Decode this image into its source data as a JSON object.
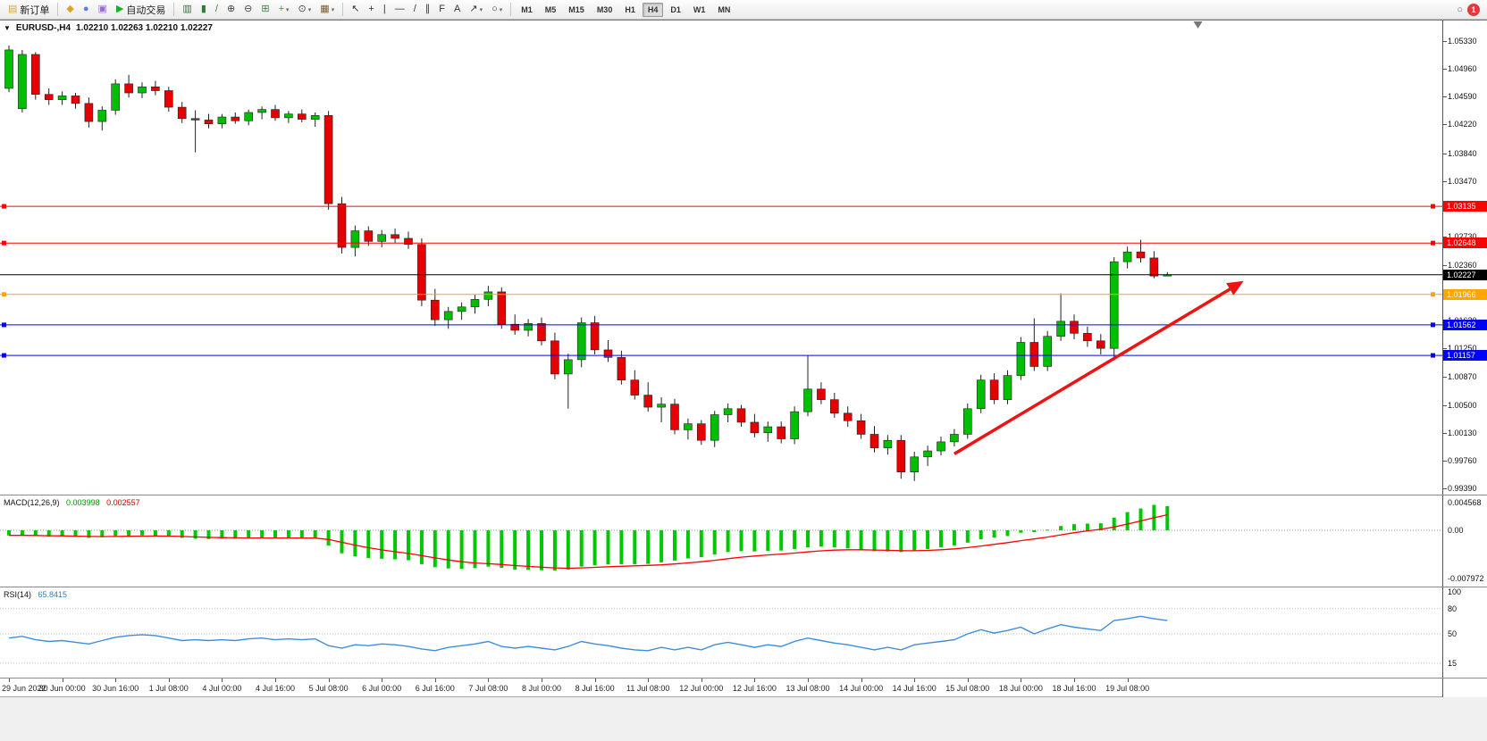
{
  "colors": {
    "bull": "#00BE00",
    "bear": "#E60000",
    "wick": "#222222",
    "arrow": "#ED1313",
    "macd_hist": "#00C800",
    "macd_signal": "#FF0000",
    "rsi_line": "#3E8EDE",
    "axis_text": "#000000"
  },
  "toolbar": {
    "dropdown_glyph": "▾",
    "groups": [
      {
        "items": [
          {
            "name": "new-order-button",
            "icon_name": "new-order-icon",
            "glyph": "▤",
            "glyph_color": "#d8a43c",
            "label": "新订单"
          }
        ]
      },
      {
        "items": [
          {
            "name": "market-button",
            "icon_name": "market-icon",
            "glyph": "◆",
            "glyph_color": "#e0a327"
          },
          {
            "name": "profile-button",
            "icon_name": "profile-icon",
            "glyph": "●",
            "glyph_color": "#5a7fd6"
          },
          {
            "name": "community-button",
            "icon_name": "community-icon",
            "glyph": "▣",
            "glyph_color": "#9a6bd0"
          },
          {
            "name": "autotrade-button",
            "icon_name": "autotrade-play-icon",
            "glyph": "▶",
            "glyph_color": "#1faf1f",
            "label": "自动交易"
          }
        ]
      },
      {
        "items": [
          {
            "name": "bar-chart-button",
            "icon_name": "bar-chart-icon",
            "glyph": "▥",
            "glyph_color": "#3a6b3a"
          },
          {
            "name": "candlestick-chart-button",
            "icon_name": "candlestick-chart-icon",
            "glyph": "▮",
            "glyph_color": "#2e7d32"
          },
          {
            "name": "line-chart-button",
            "icon_name": "line-chart-icon",
            "glyph": "/",
            "glyph_color": "#2e7d32"
          },
          {
            "name": "zoom-in-button",
            "icon_name": "zoom-in-icon",
            "glyph": "⊕",
            "glyph_color": "#444444"
          },
          {
            "name": "zoom-out-button",
            "icon_name": "zoom-out-icon",
            "glyph": "⊖",
            "glyph_color": "#444444"
          },
          {
            "name": "tile-windows-button",
            "icon_name": "tile-windows-icon",
            "glyph": "⊞",
            "glyph_color": "#3f7f3f"
          },
          {
            "name": "indicators-button",
            "icon_name": "indicators-plus-icon",
            "glyph": "+",
            "glyph_color": "#1faf1f",
            "dropdown": true
          },
          {
            "name": "periods-button",
            "icon_name": "clock-icon",
            "glyph": "⊙",
            "glyph_color": "#444444",
            "dropdown": true
          },
          {
            "name": "templates-button",
            "icon_name": "template-icon",
            "glyph": "▦",
            "glyph_color": "#7a5c2e",
            "dropdown": true
          }
        ]
      },
      {
        "items": [
          {
            "name": "cursor-button",
            "icon_name": "cursor-icon",
            "glyph": "↖",
            "glyph_color": "#333333"
          },
          {
            "name": "crosshair-button",
            "icon_name": "crosshair-icon",
            "glyph": "+",
            "glyph_color": "#333333"
          },
          {
            "name": "vertical-line-button",
            "icon_name": "vertical-line-icon",
            "glyph": "|",
            "glyph_color": "#333333"
          },
          {
            "name": "horizontal-line-button",
            "icon_name": "horizontal-line-icon",
            "glyph": "—",
            "glyph_color": "#333333"
          },
          {
            "name": "trendline-button",
            "icon_name": "trendline-icon",
            "glyph": "/",
            "glyph_color": "#333333"
          },
          {
            "name": "channel-button",
            "icon_name": "channel-icon",
            "glyph": "∥",
            "glyph_color": "#333333"
          },
          {
            "name": "fibonacci-button",
            "icon_name": "fibonacci-icon",
            "glyph": "F",
            "glyph_color": "#333333"
          },
          {
            "name": "text-button",
            "icon_name": "text-icon",
            "glyph": "A",
            "glyph_color": "#333333"
          },
          {
            "name": "arrows-button",
            "icon_name": "arrow-object-icon",
            "glyph": "↗",
            "glyph_color": "#333333",
            "dropdown": true
          },
          {
            "name": "shapes-button",
            "icon_name": "shapes-icon",
            "glyph": "○",
            "glyph_color": "#333333",
            "dropdown": true
          }
        ]
      }
    ],
    "timeframes": [
      "M1",
      "M5",
      "M15",
      "M30",
      "H1",
      "H4",
      "D1",
      "W1",
      "MN"
    ],
    "active_timeframe": "H4",
    "search_glyph": "○",
    "notification_count": "1"
  },
  "chart": {
    "collapse_glyph": "▼",
    "title": "EURUSD-,H4",
    "ohlc": "1.02210 1.02263 1.02210 1.02227",
    "shift_marker_index": 89.3
  },
  "chart_data": {
    "type": "candlestick",
    "symbol": "EURUSD",
    "period": "H4",
    "ylim": [
      0.9931,
      1.056
    ],
    "y_ticks": [
      "1.05330",
      "1.04960",
      "1.04590",
      "1.04220",
      "1.03840",
      "1.03470",
      "1.03100",
      "1.02730",
      "1.02360",
      "1.01990",
      "1.01620",
      "1.01250",
      "1.00870",
      "1.00500",
      "1.00130",
      "0.99760",
      "0.99390"
    ],
    "x_label_step": 4,
    "x_labels": [
      "29 Jun 2022",
      "30 Jun 00:00",
      "30 Jun 16:00",
      "1 Jul 08:00",
      "4 Jul 00:00",
      "4 Jul 16:00",
      "5 Jul 08:00",
      "6 Jul 00:00",
      "6 Jul 16:00",
      "7 Jul 08:00",
      "8 Jul 00:00",
      "8 Jul 16:00",
      "11 Jul 08:00",
      "12 Jul 00:00",
      "12 Jul 16:00",
      "13 Jul 08:00",
      "14 Jul 00:00",
      "14 Jul 16:00",
      "15 Jul 08:00",
      "18 Jul 00:00",
      "18 Jul 16:00",
      "19 Jul 08:00"
    ],
    "candles": [
      [
        1.047,
        1.0527,
        1.0465,
        1.0521
      ],
      [
        1.0443,
        1.0521,
        1.0438,
        1.0515
      ],
      [
        1.0515,
        1.0518,
        1.0455,
        1.0462
      ],
      [
        1.0462,
        1.047,
        1.0448,
        1.0455
      ],
      [
        1.0455,
        1.0466,
        1.0448,
        1.046
      ],
      [
        1.046,
        1.0464,
        1.0443,
        1.045
      ],
      [
        1.045,
        1.0458,
        1.0418,
        1.0426
      ],
      [
        1.0426,
        1.0446,
        1.0414,
        1.0441
      ],
      [
        1.0441,
        1.0482,
        1.0435,
        1.0476
      ],
      [
        1.0476,
        1.0488,
        1.0458,
        1.0464
      ],
      [
        1.0464,
        1.0478,
        1.0457,
        1.0472
      ],
      [
        1.0472,
        1.048,
        1.0461,
        1.0467
      ],
      [
        1.0467,
        1.0472,
        1.0439,
        1.0445
      ],
      [
        1.0445,
        1.0452,
        1.0424,
        1.043
      ],
      [
        1.043,
        1.0441,
        1.0385,
        1.0428
      ],
      [
        1.0428,
        1.0436,
        1.0417,
        1.0423
      ],
      [
        1.0423,
        1.0436,
        1.0417,
        1.0432
      ],
      [
        1.0432,
        1.0438,
        1.0423,
        1.0427
      ],
      [
        1.0427,
        1.0442,
        1.0421,
        1.0438
      ],
      [
        1.0438,
        1.0446,
        1.0429,
        1.0442
      ],
      [
        1.0442,
        1.0448,
        1.0427,
        1.0431
      ],
      [
        1.0431,
        1.044,
        1.0424,
        1.0436
      ],
      [
        1.0436,
        1.0442,
        1.0425,
        1.0429
      ],
      [
        1.0429,
        1.0438,
        1.0419,
        1.0434
      ],
      [
        1.0434,
        1.044,
        1.0309,
        1.0317
      ],
      [
        1.0317,
        1.0326,
        1.0251,
        1.0259
      ],
      [
        1.0259,
        1.0288,
        1.0247,
        1.0281
      ],
      [
        1.0281,
        1.0287,
        1.0261,
        1.0267
      ],
      [
        1.0267,
        1.0282,
        1.0259,
        1.0276
      ],
      [
        1.0276,
        1.0284,
        1.0265,
        1.0271
      ],
      [
        1.0271,
        1.028,
        1.0257,
        1.0263
      ],
      [
        1.0263,
        1.0271,
        1.0181,
        1.0189
      ],
      [
        1.0189,
        1.0204,
        1.0155,
        1.0163
      ],
      [
        1.0163,
        1.018,
        1.0151,
        1.0174
      ],
      [
        1.0174,
        1.0186,
        1.0163,
        1.018
      ],
      [
        1.018,
        1.0196,
        1.0171,
        1.019
      ],
      [
        1.019,
        1.0208,
        1.0181,
        1.02
      ],
      [
        1.02,
        1.0206,
        1.0151,
        1.0157
      ],
      [
        1.0157,
        1.017,
        1.0143,
        1.0149
      ],
      [
        1.0149,
        1.0164,
        1.0141,
        1.0158
      ],
      [
        1.0158,
        1.0166,
        1.0129,
        1.0135
      ],
      [
        1.0135,
        1.0146,
        1.0084,
        1.0091
      ],
      [
        1.0091,
        1.0118,
        1.0045,
        1.011
      ],
      [
        1.011,
        1.0166,
        1.01,
        1.0159
      ],
      [
        1.0159,
        1.0168,
        1.0117,
        1.0123
      ],
      [
        1.0123,
        1.0136,
        1.0107,
        1.0113
      ],
      [
        1.0113,
        1.0122,
        1.0077,
        1.0083
      ],
      [
        1.0083,
        1.0096,
        1.0057,
        1.0063
      ],
      [
        1.0063,
        1.008,
        1.0041,
        1.0047
      ],
      [
        1.0047,
        1.006,
        1.0027,
        1.0051
      ],
      [
        1.0051,
        1.0058,
        1.0011,
        1.0017
      ],
      [
        1.0017,
        1.0032,
        1.0004,
        1.0025
      ],
      [
        1.0025,
        1.003,
        0.9997,
        1.0003
      ],
      [
        1.0003,
        1.0042,
        0.9994,
        1.0037
      ],
      [
        1.0037,
        1.0052,
        1.0027,
        1.0045
      ],
      [
        1.0045,
        1.005,
        1.0021,
        1.0027
      ],
      [
        1.0027,
        1.0038,
        1.0007,
        1.0013
      ],
      [
        1.0013,
        1.0028,
        1.0001,
        1.0021
      ],
      [
        1.0021,
        1.0028,
        0.9999,
        1.0005
      ],
      [
        1.0005,
        1.0048,
        0.9998,
        1.0041
      ],
      [
        1.0041,
        1.0115,
        1.0035,
        1.0071
      ],
      [
        1.0071,
        1.008,
        1.0051,
        1.0057
      ],
      [
        1.0057,
        1.0066,
        1.0033,
        1.0039
      ],
      [
        1.0039,
        1.0048,
        1.0021,
        1.0029
      ],
      [
        1.0029,
        1.0038,
        1.0005,
        1.0011
      ],
      [
        1.0011,
        1.0022,
        0.9987,
        0.9993
      ],
      [
        0.9993,
        1.001,
        0.9984,
        1.0003
      ],
      [
        1.0003,
        1.001,
        0.9952,
        0.9961
      ],
      [
        0.9961,
        0.9988,
        0.9949,
        0.9981
      ],
      [
        0.9981,
        0.9996,
        0.9969,
        0.9989
      ],
      [
        0.9989,
        1.0008,
        0.9983,
        1.0001
      ],
      [
        1.0001,
        1.0018,
        0.9995,
        1.0011
      ],
      [
        1.0011,
        1.0052,
        1.0005,
        1.0045
      ],
      [
        1.0045,
        1.009,
        1.0039,
        1.0083
      ],
      [
        1.0083,
        1.0092,
        1.0051,
        1.0057
      ],
      [
        1.0057,
        1.0096,
        1.0051,
        1.0089
      ],
      [
        1.0089,
        1.014,
        1.0083,
        1.0133
      ],
      [
        1.0133,
        1.0165,
        1.0095,
        1.0101
      ],
      [
        1.0101,
        1.0148,
        1.0095,
        1.0141
      ],
      [
        1.0141,
        1.0198,
        1.0135,
        1.0161
      ],
      [
        1.0161,
        1.017,
        1.0137,
        1.0145
      ],
      [
        1.0145,
        1.0154,
        1.0127,
        1.0135
      ],
      [
        1.0135,
        1.0144,
        1.0117,
        1.0125
      ],
      [
        1.0125,
        1.0246,
        1.0109,
        1.024
      ],
      [
        1.024,
        1.026,
        1.0231,
        1.0253
      ],
      [
        1.0253,
        1.0269,
        1.0239,
        1.0245
      ],
      [
        1.0245,
        1.0254,
        1.0218,
        1.0221
      ],
      [
        1.0221,
        1.02263,
        1.0221,
        1.02227
      ]
    ],
    "overlays": {
      "horizontal_lines": [
        {
          "price": 1.03135,
          "color": "#FF0000",
          "tag": "1.03135"
        },
        {
          "price": 1.02648,
          "color": "#FF0000",
          "tag": "1.02648"
        },
        {
          "price": 1.02227,
          "color": "#000000",
          "tag": "1.02227",
          "role": "current-price-line"
        },
        {
          "price": 1.01966,
          "color": "#FFA500",
          "tag": "1.01966"
        },
        {
          "price": 1.01562,
          "color": "#0000FF",
          "tag": "1.01562"
        },
        {
          "price": 1.01157,
          "color": "#0000FF",
          "tag": "1.01157"
        }
      ],
      "trend_arrow": {
        "from": {
          "index": 71,
          "price": 0.9985
        },
        "to": {
          "index": 92.5,
          "price": 1.0212
        }
      }
    },
    "indicators": [
      {
        "name": "MACD",
        "display": "MACD(12,26,9)",
        "values_text": [
          "0.003998",
          "0.002557"
        ],
        "ylim": [
          -0.0093,
          0.005748
        ],
        "axis_labels": [
          {
            "text": "0.004568",
            "value": 0.004568
          },
          {
            "text": "0.00",
            "value": 0
          },
          {
            "text": "-0.007972",
            "value": -0.007972
          }
        ],
        "histogram": [
          -0.00085,
          -0.0008,
          -0.00095,
          -0.00105,
          -0.001,
          -0.0011,
          -0.00125,
          -0.00115,
          -0.00095,
          -0.0009,
          -0.00085,
          -0.0009,
          -0.00105,
          -0.00125,
          -0.0014,
          -0.00145,
          -0.0014,
          -0.0014,
          -0.00135,
          -0.00125,
          -0.0013,
          -0.00128,
          -0.00132,
          -0.0013,
          -0.0025,
          -0.0038,
          -0.0043,
          -0.0046,
          -0.0047,
          -0.0048,
          -0.00495,
          -0.0056,
          -0.0061,
          -0.0063,
          -0.00635,
          -0.00625,
          -0.006,
          -0.0062,
          -0.0065,
          -0.00655,
          -0.0066,
          -0.00665,
          -0.0065,
          -0.006,
          -0.0058,
          -0.00565,
          -0.0056,
          -0.0056,
          -0.00555,
          -0.0053,
          -0.005,
          -0.00465,
          -0.00445,
          -0.004,
          -0.0036,
          -0.00345,
          -0.0035,
          -0.0034,
          -0.00335,
          -0.0031,
          -0.0028,
          -0.0027,
          -0.0028,
          -0.003,
          -0.0032,
          -0.00345,
          -0.0035,
          -0.0036,
          -0.0034,
          -0.0031,
          -0.0028,
          -0.0025,
          -0.00205,
          -0.0015,
          -0.0012,
          -0.00095,
          -0.0004,
          -0.0003,
          0.0001,
          0.0007,
          0.001,
          0.0011,
          0.00115,
          0.0021,
          0.003,
          0.0036,
          0.0042,
          0.004
        ],
        "signal": [
          -0.00085,
          -0.00084,
          -0.00086,
          -0.0009,
          -0.00092,
          -0.00096,
          -0.00102,
          -0.00104,
          -0.00102,
          -0.001,
          -0.00097,
          -0.00095,
          -0.00097,
          -0.00103,
          -0.0011,
          -0.00117,
          -0.00122,
          -0.00125,
          -0.00127,
          -0.00127,
          -0.00128,
          -0.00128,
          -0.00129,
          -0.00129,
          -0.00153,
          -0.00198,
          -0.00245,
          -0.00288,
          -0.00324,
          -0.00355,
          -0.00383,
          -0.00419,
          -0.00457,
          -0.00491,
          -0.0052,
          -0.00541,
          -0.00553,
          -0.00566,
          -0.00583,
          -0.00597,
          -0.0061,
          -0.00621,
          -0.00627,
          -0.00621,
          -0.00613,
          -0.00603,
          -0.00595,
          -0.00588,
          -0.00581,
          -0.00571,
          -0.00557,
          -0.00539,
          -0.0052,
          -0.00496,
          -0.00469,
          -0.00444,
          -0.00425,
          -0.00408,
          -0.00393,
          -0.00377,
          -0.00357,
          -0.0034,
          -0.00328,
          -0.00322,
          -0.00322,
          -0.00326,
          -0.00331,
          -0.00337,
          -0.00338,
          -0.00332,
          -0.00322,
          -0.00307,
          -0.00287,
          -0.0026,
          -0.00232,
          -0.00204,
          -0.00171,
          -0.00143,
          -0.00112,
          -0.00076,
          -0.00041,
          -0.0001,
          0.00015,
          0.00054,
          0.00103,
          0.00154,
          0.00208,
          0.00256
        ]
      },
      {
        "name": "RSI",
        "display": "RSI(14)",
        "value_text": "65.8415",
        "ylim": [
          -2.1,
          105.3
        ],
        "levels": [
          80,
          50,
          15
        ],
        "axis_labels": [
          {
            "text": "100",
            "value": 100
          },
          {
            "text": "80",
            "value": 80
          },
          {
            "text": "50",
            "value": 50
          },
          {
            "text": "15",
            "value": 15
          }
        ],
        "values": [
          45,
          47,
          43,
          41,
          42,
          40,
          38,
          42,
          46,
          48,
          49,
          48,
          45,
          42,
          43,
          42,
          43,
          42,
          44,
          45,
          43,
          44,
          43,
          44,
          36,
          33,
          37,
          36,
          38,
          37,
          35,
          32,
          30,
          34,
          36,
          38,
          41,
          35,
          33,
          35,
          33,
          31,
          35,
          41,
          38,
          36,
          33,
          31,
          30,
          34,
          31,
          34,
          31,
          37,
          40,
          37,
          34,
          37,
          35,
          41,
          45,
          42,
          39,
          37,
          34,
          31,
          34,
          31,
          37,
          39,
          41,
          43,
          50,
          55,
          51,
          54,
          58,
          50,
          56,
          61,
          58,
          56,
          54,
          66,
          68,
          71,
          68,
          65.84
        ]
      }
    ]
  }
}
